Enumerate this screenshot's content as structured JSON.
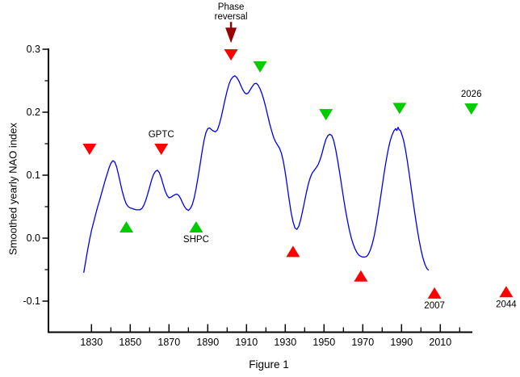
{
  "figure": {
    "background": "#ffffff"
  },
  "chart_data": {
    "type": "line",
    "title": "",
    "xlabel": "",
    "ylabel": "Smoothed yearly NAO index",
    "caption": "Figure 1",
    "xlim": [
      1808,
      2028
    ],
    "ylim": [
      -0.15,
      0.3
    ],
    "grid": false,
    "legend": "none",
    "axis_color": "#000000",
    "line_color": "#0000ee",
    "x_ticks_major": [
      1830,
      1850,
      1870,
      1890,
      1910,
      1930,
      1950,
      1970,
      1990,
      2010
    ],
    "x_ticks_minor": [
      1840,
      1860,
      1880,
      1900,
      1920,
      1940,
      1960,
      1980,
      2000,
      2020
    ],
    "y_ticks_major": [
      0.3,
      0.2,
      0.1,
      0.0,
      -0.1
    ],
    "y_ticks_minor": [
      0.25,
      0.15,
      0.05,
      -0.05
    ],
    "series": [
      {
        "name": "Smoothed yearly NAO index",
        "color": "#0000ee",
        "points": [
          [
            1826,
            -0.055
          ],
          [
            1827,
            -0.037
          ],
          [
            1828,
            -0.019
          ],
          [
            1829,
            -0.003
          ],
          [
            1830,
            0.012
          ],
          [
            1831,
            0.024
          ],
          [
            1832,
            0.036
          ],
          [
            1833,
            0.048
          ],
          [
            1834,
            0.058
          ],
          [
            1835,
            0.069
          ],
          [
            1836,
            0.08
          ],
          [
            1837,
            0.091
          ],
          [
            1838,
            0.101
          ],
          [
            1839,
            0.111
          ],
          [
            1840,
            0.119
          ],
          [
            1841,
            0.123
          ],
          [
            1842,
            0.121
          ],
          [
            1843,
            0.113
          ],
          [
            1844,
            0.1
          ],
          [
            1845,
            0.086
          ],
          [
            1846,
            0.073
          ],
          [
            1847,
            0.062
          ],
          [
            1848,
            0.054
          ],
          [
            1849,
            0.05
          ],
          [
            1850,
            0.048
          ],
          [
            1851,
            0.047
          ],
          [
            1852,
            0.046
          ],
          [
            1853,
            0.045
          ],
          [
            1854,
            0.045
          ],
          [
            1855,
            0.045
          ],
          [
            1856,
            0.047
          ],
          [
            1857,
            0.052
          ],
          [
            1858,
            0.06
          ],
          [
            1859,
            0.07
          ],
          [
            1860,
            0.081
          ],
          [
            1861,
            0.092
          ],
          [
            1862,
            0.101
          ],
          [
            1863,
            0.106
          ],
          [
            1864,
            0.108
          ],
          [
            1865,
            0.104
          ],
          [
            1866,
            0.096
          ],
          [
            1867,
            0.085
          ],
          [
            1868,
            0.075
          ],
          [
            1869,
            0.068
          ],
          [
            1870,
            0.064
          ],
          [
            1871,
            0.065
          ],
          [
            1872,
            0.067
          ],
          [
            1873,
            0.069
          ],
          [
            1874,
            0.07
          ],
          [
            1875,
            0.068
          ],
          [
            1876,
            0.063
          ],
          [
            1877,
            0.056
          ],
          [
            1878,
            0.05
          ],
          [
            1879,
            0.046
          ],
          [
            1880,
            0.044
          ],
          [
            1881,
            0.047
          ],
          [
            1882,
            0.053
          ],
          [
            1883,
            0.064
          ],
          [
            1884,
            0.079
          ],
          [
            1885,
            0.097
          ],
          [
            1886,
            0.116
          ],
          [
            1887,
            0.136
          ],
          [
            1888,
            0.154
          ],
          [
            1889,
            0.167
          ],
          [
            1890,
            0.174
          ],
          [
            1891,
            0.175
          ],
          [
            1892,
            0.172
          ],
          [
            1893,
            0.17
          ],
          [
            1894,
            0.169
          ],
          [
            1895,
            0.172
          ],
          [
            1896,
            0.181
          ],
          [
            1897,
            0.193
          ],
          [
            1898,
            0.207
          ],
          [
            1899,
            0.221
          ],
          [
            1900,
            0.234
          ],
          [
            1901,
            0.245
          ],
          [
            1902,
            0.252
          ],
          [
            1903,
            0.256
          ],
          [
            1904,
            0.258
          ],
          [
            1905,
            0.255
          ],
          [
            1906,
            0.25
          ],
          [
            1907,
            0.243
          ],
          [
            1908,
            0.236
          ],
          [
            1909,
            0.231
          ],
          [
            1910,
            0.229
          ],
          [
            1911,
            0.231
          ],
          [
            1912,
            0.236
          ],
          [
            1913,
            0.241
          ],
          [
            1914,
            0.245
          ],
          [
            1915,
            0.246
          ],
          [
            1916,
            0.243
          ],
          [
            1917,
            0.237
          ],
          [
            1918,
            0.229
          ],
          [
            1919,
            0.219
          ],
          [
            1920,
            0.207
          ],
          [
            1921,
            0.194
          ],
          [
            1922,
            0.181
          ],
          [
            1923,
            0.17
          ],
          [
            1924,
            0.16
          ],
          [
            1925,
            0.153
          ],
          [
            1926,
            0.148
          ],
          [
            1927,
            0.143
          ],
          [
            1928,
            0.135
          ],
          [
            1929,
            0.122
          ],
          [
            1930,
            0.104
          ],
          [
            1931,
            0.083
          ],
          [
            1932,
            0.061
          ],
          [
            1933,
            0.041
          ],
          [
            1934,
            0.026
          ],
          [
            1935,
            0.016
          ],
          [
            1936,
            0.014
          ],
          [
            1937,
            0.019
          ],
          [
            1938,
            0.03
          ],
          [
            1939,
            0.044
          ],
          [
            1940,
            0.059
          ],
          [
            1941,
            0.074
          ],
          [
            1942,
            0.087
          ],
          [
            1943,
            0.097
          ],
          [
            1944,
            0.104
          ],
          [
            1945,
            0.108
          ],
          [
            1946,
            0.112
          ],
          [
            1947,
            0.117
          ],
          [
            1948,
            0.125
          ],
          [
            1949,
            0.135
          ],
          [
            1950,
            0.147
          ],
          [
            1951,
            0.157
          ],
          [
            1952,
            0.163
          ],
          [
            1953,
            0.165
          ],
          [
            1954,
            0.163
          ],
          [
            1955,
            0.155
          ],
          [
            1956,
            0.141
          ],
          [
            1957,
            0.124
          ],
          [
            1958,
            0.105
          ],
          [
            1959,
            0.085
          ],
          [
            1960,
            0.065
          ],
          [
            1961,
            0.046
          ],
          [
            1962,
            0.029
          ],
          [
            1963,
            0.014
          ],
          [
            1964,
            0.001
          ],
          [
            1965,
            -0.009
          ],
          [
            1966,
            -0.017
          ],
          [
            1967,
            -0.023
          ],
          [
            1968,
            -0.027
          ],
          [
            1969,
            -0.029
          ],
          [
            1970,
            -0.03
          ],
          [
            1971,
            -0.03
          ],
          [
            1972,
            -0.029
          ],
          [
            1973,
            -0.025
          ],
          [
            1974,
            -0.018
          ],
          [
            1975,
            -0.008
          ],
          [
            1976,
            0.005
          ],
          [
            1977,
            0.022
          ],
          [
            1978,
            0.041
          ],
          [
            1979,
            0.061
          ],
          [
            1980,
            0.082
          ],
          [
            1981,
            0.103
          ],
          [
            1982,
            0.122
          ],
          [
            1983,
            0.139
          ],
          [
            1984,
            0.153
          ],
          [
            1985,
            0.163
          ],
          [
            1986,
            0.17
          ],
          [
            1987,
            0.174
          ],
          [
            1987.6,
            0.171
          ],
          [
            1988.2,
            0.176
          ],
          [
            1988.8,
            0.172
          ],
          [
            1989.4,
            0.171
          ],
          [
            1990,
            0.166
          ],
          [
            1991,
            0.156
          ],
          [
            1992,
            0.141
          ],
          [
            1993,
            0.122
          ],
          [
            1994,
            0.101
          ],
          [
            1995,
            0.079
          ],
          [
            1996,
            0.057
          ],
          [
            1997,
            0.036
          ],
          [
            1998,
            0.016
          ],
          [
            1999,
            -0.002
          ],
          [
            2000,
            -0.018
          ],
          [
            2001,
            -0.031
          ],
          [
            2002,
            -0.041
          ],
          [
            2003,
            -0.048
          ],
          [
            2004,
            -0.051
          ]
        ]
      }
    ],
    "markers": [
      {
        "shape": "triangle-down",
        "color": "#ff0000",
        "year": 1829,
        "value": 0.141,
        "label": "",
        "label_pos": ""
      },
      {
        "shape": "triangle-down",
        "color": "#ff0000",
        "year": 1866,
        "value": 0.141,
        "label": "GPTC",
        "label_pos": "above"
      },
      {
        "shape": "triangle-down",
        "color": "#ff0000",
        "year": 1902,
        "value": 0.291,
        "label": "",
        "label_pos": ""
      },
      {
        "shape": "triangle-down",
        "color": "#00cc00",
        "year": 1917,
        "value": 0.272,
        "label": "",
        "label_pos": ""
      },
      {
        "shape": "triangle-down",
        "color": "#00cc00",
        "year": 1951,
        "value": 0.196,
        "label": "",
        "label_pos": ""
      },
      {
        "shape": "triangle-down",
        "color": "#00cc00",
        "year": 1989,
        "value": 0.206,
        "label": "",
        "label_pos": ""
      },
      {
        "shape": "triangle-down",
        "color": "#00cc00",
        "year": 2026,
        "value": 0.205,
        "label": "2026",
        "label_pos": "above"
      },
      {
        "shape": "triangle-up",
        "color": "#00cc00",
        "year": 1848,
        "value": 0.018,
        "label": "",
        "label_pos": ""
      },
      {
        "shape": "triangle-up",
        "color": "#00cc00",
        "year": 1884,
        "value": 0.018,
        "label": "SHPC",
        "label_pos": "below"
      },
      {
        "shape": "triangle-up",
        "color": "#ff0000",
        "year": 1934,
        "value": -0.021,
        "label": "",
        "label_pos": ""
      },
      {
        "shape": "triangle-up",
        "color": "#ff0000",
        "year": 1969,
        "value": -0.06,
        "label": "",
        "label_pos": ""
      },
      {
        "shape": "triangle-up",
        "color": "#ff0000",
        "year": 2007,
        "value": -0.087,
        "label": "2007",
        "label_pos": "below"
      },
      {
        "shape": "triangle-up",
        "color": "#ff0000",
        "year": 2044,
        "value": -0.085,
        "label": "2044",
        "label_pos": "below"
      }
    ],
    "arrow_annotation": {
      "label_lines": [
        "Phase",
        "reversal"
      ],
      "year": 1902,
      "tip_value": 0.31,
      "color": "#990000"
    }
  }
}
